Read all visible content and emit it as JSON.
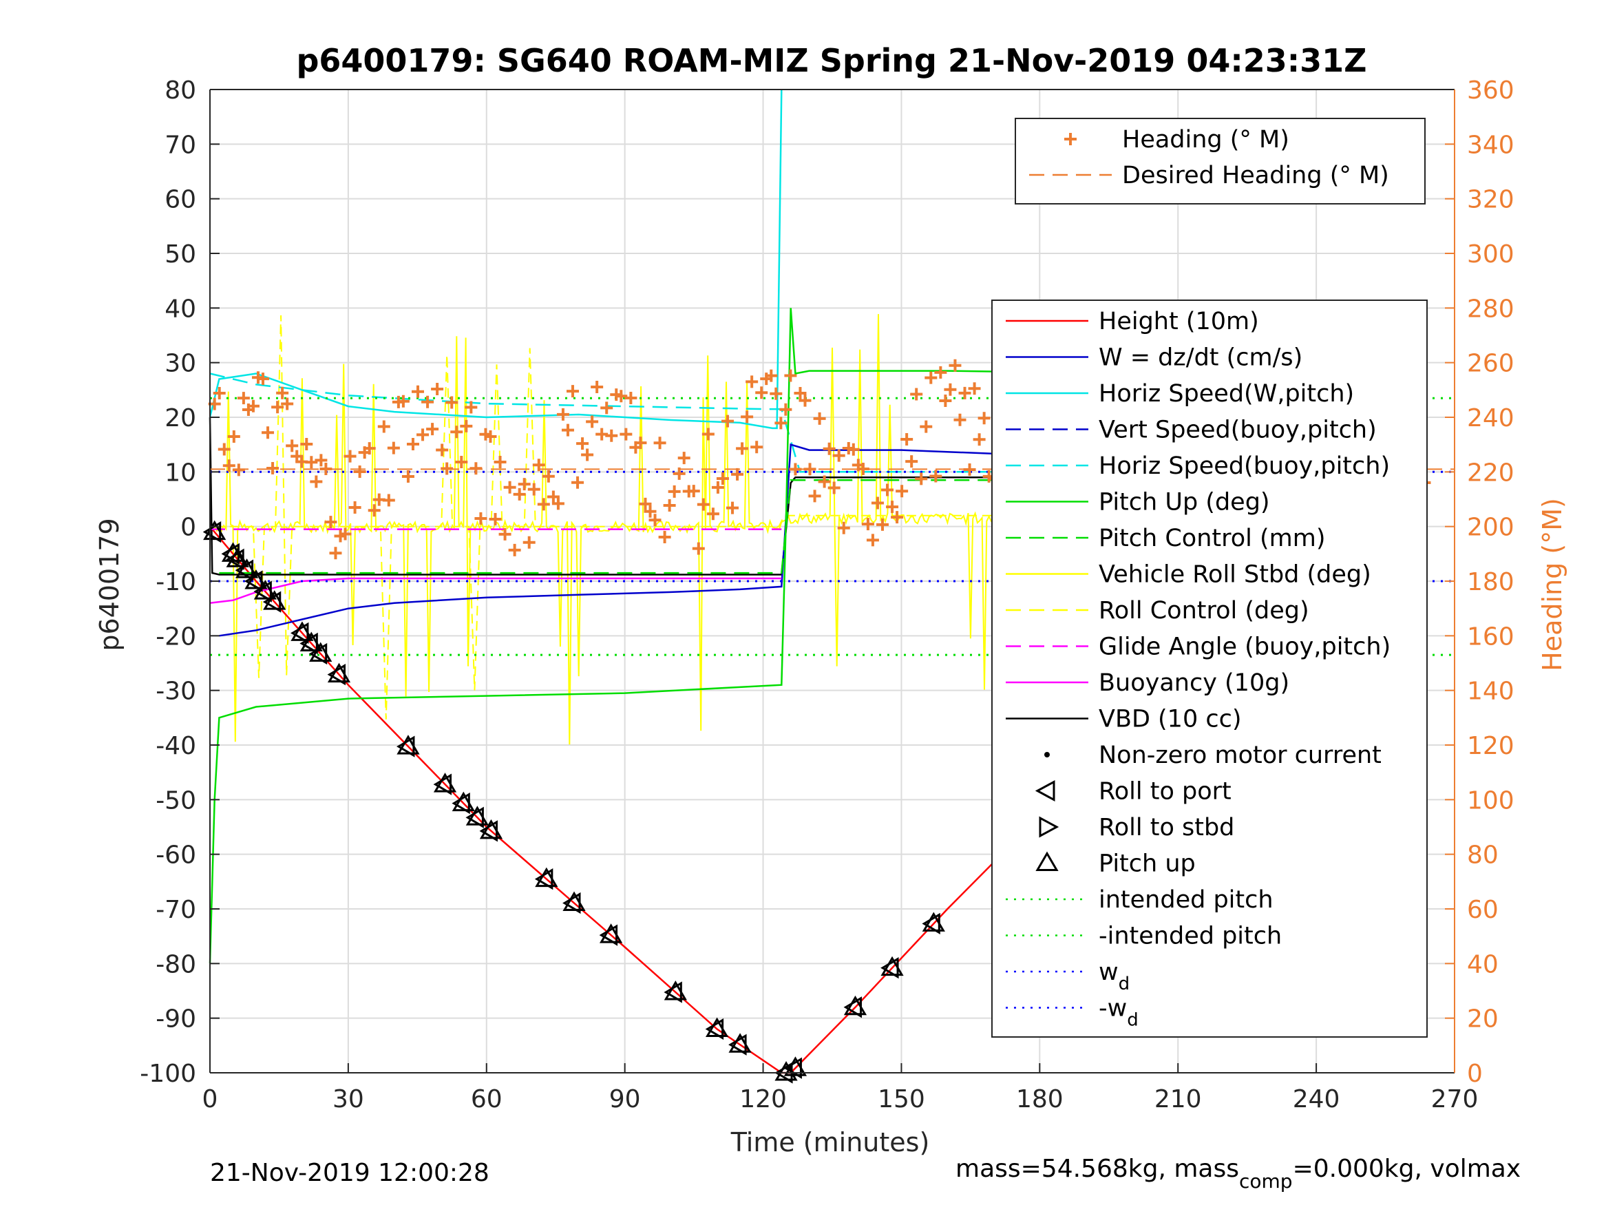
{
  "chart_data": {
    "type": "line",
    "title": "p6400179: SG640 ROAM-MIZ Spring 21-Nov-2019 04:23:31Z",
    "xlabel": "Time (minutes)",
    "ylabel": "p6400179",
    "y2label": "Heading (°M)",
    "xlim": [
      0,
      270
    ],
    "ylim": [
      -100,
      80
    ],
    "y2lim": [
      0,
      360
    ],
    "x_ticks": [
      "0",
      "30",
      "60",
      "90",
      "120",
      "150",
      "180",
      "210",
      "240",
      "270"
    ],
    "y_ticks": [
      "80",
      "70",
      "60",
      "50",
      "40",
      "30",
      "20",
      "10",
      "0",
      "-10",
      "-20",
      "-30",
      "-40",
      "-50",
      "-60",
      "-70",
      "-80",
      "-90",
      "-100"
    ],
    "y2_ticks": [
      "360",
      "340",
      "320",
      "300",
      "280",
      "260",
      "240",
      "220",
      "200",
      "180",
      "160",
      "140",
      "120",
      "100",
      "80",
      "60",
      "40",
      "20",
      "0"
    ],
    "grid": true,
    "legend_heading": [
      {
        "label": "Heading (° M)",
        "color": "#ed7d31",
        "style": "plus"
      },
      {
        "label": "Desired Heading (° M)",
        "color": "#ed7d31",
        "style": "dash"
      }
    ],
    "legend_main": [
      {
        "label": "Height (10m)",
        "color": "#ff0000",
        "style": "solid"
      },
      {
        "label": "W = dz/dt (cm/s)",
        "color": "#0000cc",
        "style": "solid"
      },
      {
        "label": "Horiz Speed(W,pitch)",
        "color": "#00e5e5",
        "style": "solid"
      },
      {
        "label": "Vert Speed(buoy,pitch)",
        "color": "#0000cc",
        "style": "dash"
      },
      {
        "label": "Horiz Speed(buoy,pitch)",
        "color": "#00e5e5",
        "style": "dash"
      },
      {
        "label": "Pitch Up (deg)",
        "color": "#00dd00",
        "style": "solid"
      },
      {
        "label": "Pitch Control (mm)",
        "color": "#00dd00",
        "style": "dash"
      },
      {
        "label": "Vehicle Roll Stbd (deg)",
        "color": "#ffff00",
        "style": "solid"
      },
      {
        "label": "Roll Control (deg)",
        "color": "#ffff00",
        "style": "dash"
      },
      {
        "label": "Glide Angle (buoy,pitch)",
        "color": "#ff00ff",
        "style": "dash"
      },
      {
        "label": "Buoyancy (10g)",
        "color": "#ff00ff",
        "style": "solid"
      },
      {
        "label": "VBD (10 cc)",
        "color": "#000000",
        "style": "solid"
      },
      {
        "label": "Non-zero motor current",
        "color": "#000000",
        "style": "dot"
      },
      {
        "label": "Roll to port",
        "color": "#000000",
        "style": "tri-left"
      },
      {
        "label": "Roll to stbd",
        "color": "#000000",
        "style": "tri-right"
      },
      {
        "label": "Pitch up",
        "color": "#000000",
        "style": "tri-up"
      },
      {
        "label": "intended pitch",
        "color": "#00dd00",
        "style": "dotted"
      },
      {
        "label": "-intended pitch",
        "color": "#00dd00",
        "style": "dotted"
      },
      {
        "label": "w",
        "sub": "d",
        "color": "#0000ff",
        "style": "dotted"
      },
      {
        "label": "-w",
        "sub": "d",
        "color": "#0000ff",
        "style": "dotted"
      }
    ],
    "series": [
      {
        "name": "Height (10m)",
        "color": "#ff0000",
        "x": [
          0,
          10,
          30,
          60,
          90,
          110,
          124,
          125,
          126,
          140,
          160,
          180,
          200,
          220,
          240,
          255,
          262
        ],
        "y": [
          0,
          -10,
          -29,
          -55,
          -77,
          -92,
          -100,
          -100,
          -100,
          -88,
          -70,
          -53,
          -39,
          -27,
          -15,
          -6,
          -2
        ]
      },
      {
        "name": "VBD (10 cc)",
        "color": "#000000",
        "x": [
          0,
          0.5,
          2,
          124,
          126,
          127,
          255,
          256,
          262
        ],
        "y": [
          20,
          -8.5,
          -8.8,
          -8.8,
          8,
          9,
          9,
          12,
          13
        ]
      },
      {
        "name": "Horiz Speed(W,pitch)",
        "color": "#00e5e5",
        "x": [
          0,
          2,
          10,
          20,
          30,
          40,
          60,
          80,
          100,
          115,
          122,
          123,
          124
        ],
        "y": [
          20,
          27,
          28,
          25,
          22,
          21,
          20,
          20.5,
          19.5,
          19,
          18,
          18,
          80
        ]
      },
      {
        "name": "Horiz Speed(buoy,pitch)",
        "color": "#00e5e5",
        "x": [
          0,
          10,
          30,
          60,
          90,
          120,
          124,
          128,
          200,
          260
        ],
        "y": [
          28,
          26,
          24,
          22.5,
          22,
          21.5,
          21.5,
          10,
          10,
          10
        ]
      },
      {
        "name": "W = dz/dt (cm/s)",
        "color": "#0000cc",
        "x": [
          2,
          10,
          20,
          30,
          40,
          60,
          80,
          100,
          115,
          124,
          126,
          130,
          150,
          180,
          210,
          240,
          262
        ],
        "y": [
          -20,
          -19,
          -17,
          -15,
          -14,
          -13,
          -12.5,
          -12,
          -11.5,
          -11,
          15,
          14,
          14,
          13,
          11,
          10,
          10
        ]
      },
      {
        "name": "Pitch Up (deg)",
        "color": "#00dd00",
        "x": [
          0,
          1,
          2,
          10,
          30,
          60,
          90,
          124,
          125,
          126,
          127,
          130,
          160,
          200,
          240,
          262
        ],
        "y": [
          -80,
          -50,
          -35,
          -33,
          -31.5,
          -31,
          -30.5,
          -29,
          2,
          40,
          28,
          28.5,
          28.5,
          28,
          27.5,
          27
        ]
      },
      {
        "name": "Pitch Control (mm)",
        "color": "#00dd00",
        "x": [
          2,
          124,
          126,
          262
        ],
        "y": [
          -8.5,
          -8.5,
          8.5,
          8.5
        ]
      },
      {
        "name": "Buoyancy (10g)",
        "color": "#ff00ff",
        "x": [
          0,
          5,
          10,
          20,
          30,
          60,
          124
        ],
        "y": [
          -14,
          -13.5,
          -12,
          -10,
          -9.5,
          -9.5,
          -9.5
        ]
      },
      {
        "name": "Glide Angle (buoy,pitch)",
        "color": "#ff00ff",
        "x": [
          0,
          124
        ],
        "y": [
          -0.5,
          -0.5
        ]
      },
      {
        "name": "intended pitch",
        "color": "#00dd00",
        "x": [
          0,
          270
        ],
        "y": [
          23.5,
          23.5
        ]
      },
      {
        "name": "-intended pitch",
        "color": "#00dd00",
        "x": [
          0,
          270
        ],
        "y": [
          -23.5,
          -23.5
        ]
      },
      {
        "name": "w_d",
        "color": "#0000ff",
        "x": [
          0,
          270
        ],
        "y": [
          10,
          10
        ]
      },
      {
        "name": "-w_d",
        "color": "#0000ff",
        "x": [
          0,
          270
        ],
        "y": [
          -10,
          -10
        ]
      }
    ],
    "desired_heading": {
      "name": "Desired Heading (° M)",
      "color": "#ed7d31",
      "y2": 221
    },
    "footer_left": "21-Nov-2019 12:00:28",
    "footer_right_pre": "mass=54.568kg, mass",
    "footer_right_sub": "comp",
    "footer_right_post": "=0.000kg, volmax"
  }
}
